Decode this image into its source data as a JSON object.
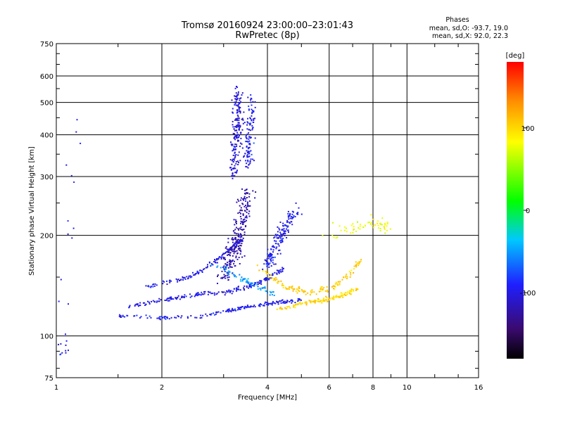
{
  "chart_data": {
    "type": "scatter",
    "title": "Tromsø 20160924 23:00:00–23:01:43",
    "subtitle": "RwPretec (8p)",
    "xlabel": "Frequency [MHz]",
    "ylabel": "Stationary phase Virtual Height [km]",
    "x_scale": "log",
    "y_scale": "log",
    "xlim": [
      1,
      16
    ],
    "ylim": [
      75,
      750
    ],
    "x_ticks": [
      1,
      2,
      4,
      6,
      8,
      10,
      16
    ],
    "x_tick_labels": [
      "1",
      "2",
      "4",
      "6",
      "8",
      "10",
      "16"
    ],
    "y_ticks": [
      75,
      100,
      200,
      300,
      400,
      500,
      600,
      750
    ],
    "y_tick_labels": [
      "75",
      "100",
      "200",
      "300",
      "400",
      "500",
      "600",
      "750"
    ],
    "grid": true,
    "phase_note": {
      "heading": "Phases",
      "o_line": "mean, sd,O: -93.7, 19.0",
      "x_line": "mean, sd,X: 92.0, 22.3"
    },
    "colorbar": {
      "label": "[deg]",
      "range": [
        -180,
        180
      ],
      "ticks": [
        100,
        0,
        -100
      ],
      "tick_labels": [
        "100",
        "0",
        "-100"
      ]
    },
    "clusters": [
      {
        "name": "o-trace-lower",
        "phase": -95,
        "n": 180,
        "path": [
          [
            1.5,
            115
          ],
          [
            2,
            113
          ],
          [
            2.5,
            114
          ],
          [
            3,
            118
          ],
          [
            3.5,
            122
          ],
          [
            4,
            125
          ],
          [
            4.5,
            127
          ],
          [
            5,
            128
          ]
        ],
        "spread": 0.012
      },
      {
        "name": "o-trace-middle",
        "phase": -98,
        "n": 200,
        "path": [
          [
            1.6,
            122
          ],
          [
            2,
            128
          ],
          [
            2.5,
            133
          ],
          [
            3,
            135
          ],
          [
            3.5,
            140
          ],
          [
            4,
            148
          ],
          [
            4.5,
            160
          ]
        ],
        "spread": 0.015
      },
      {
        "name": "o-trace-upper",
        "phase": -100,
        "n": 130,
        "path": [
          [
            1.8,
            140
          ],
          [
            2.4,
            150
          ],
          [
            2.8,
            165
          ],
          [
            3.1,
            180
          ],
          [
            3.4,
            195
          ]
        ],
        "spread": 0.015
      },
      {
        "name": "o-cusp-blob",
        "phase": -120,
        "n": 260,
        "path": [
          [
            3.0,
            150
          ],
          [
            3.2,
            175
          ],
          [
            3.3,
            200
          ],
          [
            3.4,
            230
          ],
          [
            3.5,
            270
          ]
        ],
        "spread": 0.05
      },
      {
        "name": "o-f-vertical",
        "phase": -105,
        "n": 190,
        "path": [
          [
            3.2,
            300
          ],
          [
            3.25,
            380
          ],
          [
            3.3,
            450
          ],
          [
            3.3,
            550
          ]
        ],
        "spread": 0.035
      },
      {
        "name": "o-f-vertical-2",
        "phase": -95,
        "n": 110,
        "path": [
          [
            3.5,
            320
          ],
          [
            3.55,
            380
          ],
          [
            3.6,
            440
          ],
          [
            3.62,
            520
          ]
        ],
        "spread": 0.03
      },
      {
        "name": "o-mid-4mhz",
        "phase": -95,
        "n": 170,
        "path": [
          [
            4.0,
            160
          ],
          [
            4.2,
            185
          ],
          [
            4.5,
            210
          ],
          [
            4.8,
            240
          ]
        ],
        "spread": 0.04
      },
      {
        "name": "x-trace-yellow",
        "phase": 100,
        "n": 130,
        "path": [
          [
            4.3,
            120
          ],
          [
            5.0,
            125
          ],
          [
            5.8,
            128
          ],
          [
            6.5,
            132
          ],
          [
            7.2,
            138
          ]
        ],
        "spread": 0.015
      },
      {
        "name": "x-trace-orange",
        "phase": 105,
        "n": 130,
        "path": [
          [
            3.8,
            160
          ],
          [
            4.5,
            140
          ],
          [
            5.2,
            135
          ],
          [
            6.0,
            138
          ],
          [
            6.8,
            150
          ],
          [
            7.4,
            170
          ]
        ],
        "spread": 0.02
      },
      {
        "name": "x-upper-mixed",
        "phase": 80,
        "n": 60,
        "path": [
          [
            6.0,
            200
          ],
          [
            7.0,
            210
          ],
          [
            8.0,
            220
          ],
          [
            9.0,
            210
          ]
        ],
        "spread": 0.05
      },
      {
        "name": "cyan-band",
        "phase": -50,
        "n": 70,
        "path": [
          [
            2.8,
            165
          ],
          [
            3.3,
            150
          ],
          [
            3.8,
            140
          ],
          [
            4.2,
            132
          ]
        ],
        "spread": 0.02
      },
      {
        "name": "scatter-e-left",
        "phase": -95,
        "n": 25,
        "path": [
          [
            1.03,
            90
          ],
          [
            1.08,
            92
          ],
          [
            1.1,
            470
          ]
        ],
        "spread": 0.06
      }
    ]
  }
}
